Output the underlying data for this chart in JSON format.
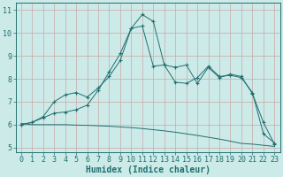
{
  "xlabel": "Humidex (Indice chaleur)",
  "ylabel": "",
  "xlim": [
    -0.5,
    23.5
  ],
  "ylim": [
    4.8,
    11.3
  ],
  "yticks": [
    5,
    6,
    7,
    8,
    9,
    10,
    11
  ],
  "xticks": [
    0,
    1,
    2,
    3,
    4,
    5,
    6,
    7,
    8,
    9,
    10,
    11,
    12,
    13,
    14,
    15,
    16,
    17,
    18,
    19,
    20,
    21,
    22,
    23
  ],
  "background_color": "#cceae8",
  "grid_color": "#c8a8a8",
  "line_color": "#207070",
  "marker": "+",
  "series1_x": [
    0,
    1,
    2,
    3,
    4,
    5,
    6,
    7,
    8,
    9,
    10,
    11,
    12,
    13,
    14,
    15,
    16,
    17,
    18,
    19,
    20,
    21,
    22,
    23
  ],
  "series1_y": [
    6.0,
    6.1,
    6.3,
    6.5,
    6.55,
    6.65,
    6.85,
    7.5,
    8.3,
    9.1,
    10.2,
    10.8,
    10.5,
    8.6,
    8.5,
    8.6,
    7.8,
    8.5,
    8.05,
    8.2,
    8.1,
    7.35,
    6.1,
    5.15
  ],
  "series2_x": [
    0,
    1,
    2,
    3,
    4,
    5,
    6,
    7,
    8,
    9,
    10,
    11,
    12,
    13,
    14,
    15,
    16,
    17,
    18,
    19,
    20,
    21,
    22,
    23
  ],
  "series2_y": [
    6.0,
    6.1,
    6.35,
    7.0,
    7.3,
    7.4,
    7.2,
    7.6,
    8.1,
    8.8,
    10.2,
    10.3,
    8.55,
    8.6,
    7.85,
    7.8,
    8.05,
    8.55,
    8.1,
    8.15,
    8.05,
    7.4,
    5.6,
    5.2
  ],
  "series3_x": [
    0,
    1,
    2,
    3,
    4,
    5,
    6,
    7,
    8,
    9,
    10,
    11,
    12,
    13,
    14,
    15,
    16,
    17,
    18,
    19,
    20,
    21,
    22,
    23
  ],
  "series3_y": [
    6.05,
    6.0,
    6.0,
    6.0,
    6.0,
    5.98,
    5.97,
    5.95,
    5.93,
    5.9,
    5.87,
    5.83,
    5.78,
    5.73,
    5.67,
    5.6,
    5.53,
    5.45,
    5.37,
    5.28,
    5.18,
    5.15,
    5.1,
    5.05
  ],
  "title_fontsize": 8,
  "tick_fontsize": 6,
  "xlabel_fontsize": 7
}
